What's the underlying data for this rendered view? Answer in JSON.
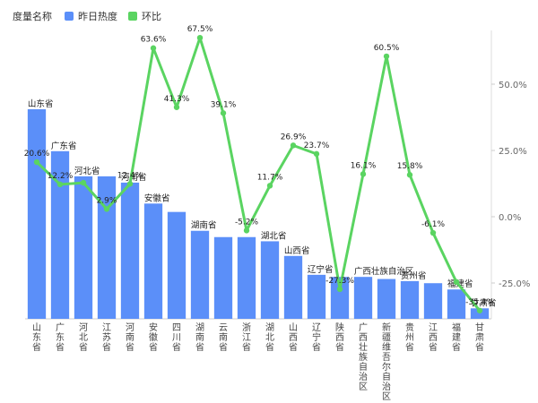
{
  "legend": {
    "title": "度量名称",
    "items": [
      {
        "label": "昨日热度",
        "color": "#5b8ff9"
      },
      {
        "label": "环比",
        "color": "#5ad461"
      }
    ]
  },
  "chart_data": {
    "type": "bar",
    "categories": [
      "山东省",
      "广东省",
      "河北省",
      "江苏省",
      "河南省",
      "安徽省",
      "四川省",
      "湖南省",
      "云南省",
      "浙江省",
      "湖北省",
      "山西省",
      "辽宁省",
      "陕西省",
      "广西壮族自治区",
      "新疆维吾尔自治区",
      "贵州省",
      "江西省",
      "福建省",
      "甘肃省"
    ],
    "series": [
      {
        "name": "昨日热度",
        "type": "bar",
        "axis": "left",
        "color": "#5b8ff9",
        "values": [
          100,
          80,
          68,
          68,
          65,
          55,
          51,
          42,
          39,
          39,
          37,
          30,
          21,
          20,
          20,
          19,
          18,
          17,
          14,
          5
        ],
        "labels": [
          "山东省",
          "广东省",
          "河北省",
          "",
          "河南省",
          "安徽省",
          "",
          "湖南省",
          "",
          "",
          "湖北省",
          "山西省",
          "辽宁省",
          "",
          "广西壮族自治区",
          "",
          "贵州省",
          "",
          "福建省",
          "甘肃省"
        ]
      },
      {
        "name": "环比",
        "type": "line",
        "axis": "right",
        "color": "#5ad461",
        "values": [
          20.6,
          12.2,
          12.8,
          2.9,
          12.4,
          63.6,
          41.3,
          67.5,
          39.1,
          -5.2,
          11.7,
          26.9,
          23.7,
          -27.3,
          16.1,
          60.5,
          15.8,
          -6.1,
          -24.6,
          -35.4
        ],
        "labels": [
          "20.6%",
          "12.2%",
          "",
          "2.9%",
          "12.4%",
          "63.6%",
          "41.3%",
          "67.5%",
          "39.1%",
          "-5.2%",
          "11.7%",
          "26.9%",
          "23.7%",
          "-27.3%",
          "16.1%",
          "60.5%",
          "15.8%",
          "-6.1%",
          "",
          "-35.4%"
        ]
      }
    ],
    "y_right": {
      "ticks": [
        50,
        25,
        0,
        -25
      ],
      "tick_labels": [
        "50.0%",
        "25.0%",
        "0.0%",
        "-25.0%"
      ],
      "range": [
        -37,
        72
      ]
    },
    "y_left_range": [
      0,
      100
    ],
    "grid": false,
    "legend_position": "top-left"
  }
}
